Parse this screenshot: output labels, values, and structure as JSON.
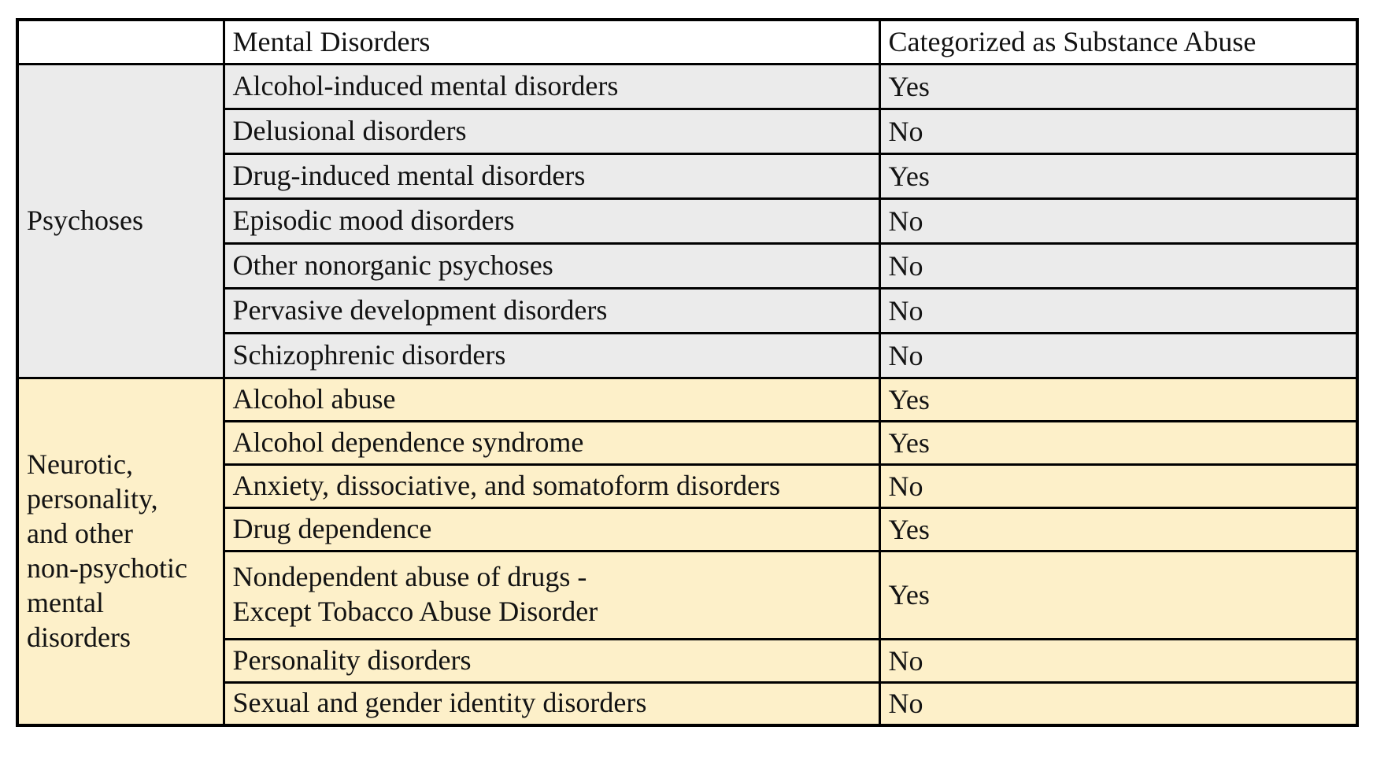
{
  "table": {
    "header": {
      "corner": "",
      "col_disorders": "Mental Disorders",
      "col_substance": "Categorized as Substance Abuse"
    },
    "colors": {
      "border": "#000000",
      "header_bg": "#ffffff",
      "psychoses_bg": "#ebebeb",
      "neurotic_bg": "#fdf0c9",
      "text": "#131313"
    },
    "groups": [
      {
        "label": "Psychoses",
        "rows": [
          {
            "disorder": "Alcohol-induced mental disorders",
            "substance_abuse": "Yes"
          },
          {
            "disorder": "Delusional disorders",
            "substance_abuse": "No"
          },
          {
            "disorder": "Drug-induced mental disorders",
            "substance_abuse": "Yes"
          },
          {
            "disorder": "Episodic mood disorders",
            "substance_abuse": "No"
          },
          {
            "disorder": "Other nonorganic psychoses",
            "substance_abuse": "No"
          },
          {
            "disorder": "Pervasive development disorders",
            "substance_abuse": "No"
          },
          {
            "disorder": "Schizophrenic disorders",
            "substance_abuse": "No"
          }
        ]
      },
      {
        "label": "Neurotic,\npersonality,\nand other\nnon-psychotic\nmental\ndisorders",
        "rows": [
          {
            "disorder": "Alcohol abuse",
            "substance_abuse": "Yes"
          },
          {
            "disorder": "Alcohol dependence syndrome",
            "substance_abuse": "Yes"
          },
          {
            "disorder": "Anxiety, dissociative, and somatoform disorders",
            "substance_abuse": "No"
          },
          {
            "disorder": "Drug dependence",
            "substance_abuse": "Yes"
          },
          {
            "disorder": "Nondependent abuse of drugs -\nExcept Tobacco Abuse Disorder",
            "substance_abuse": "Yes"
          },
          {
            "disorder": "Personality disorders",
            "substance_abuse": "No"
          },
          {
            "disorder": "Sexual and gender identity disorders",
            "substance_abuse": "No"
          }
        ]
      }
    ]
  }
}
